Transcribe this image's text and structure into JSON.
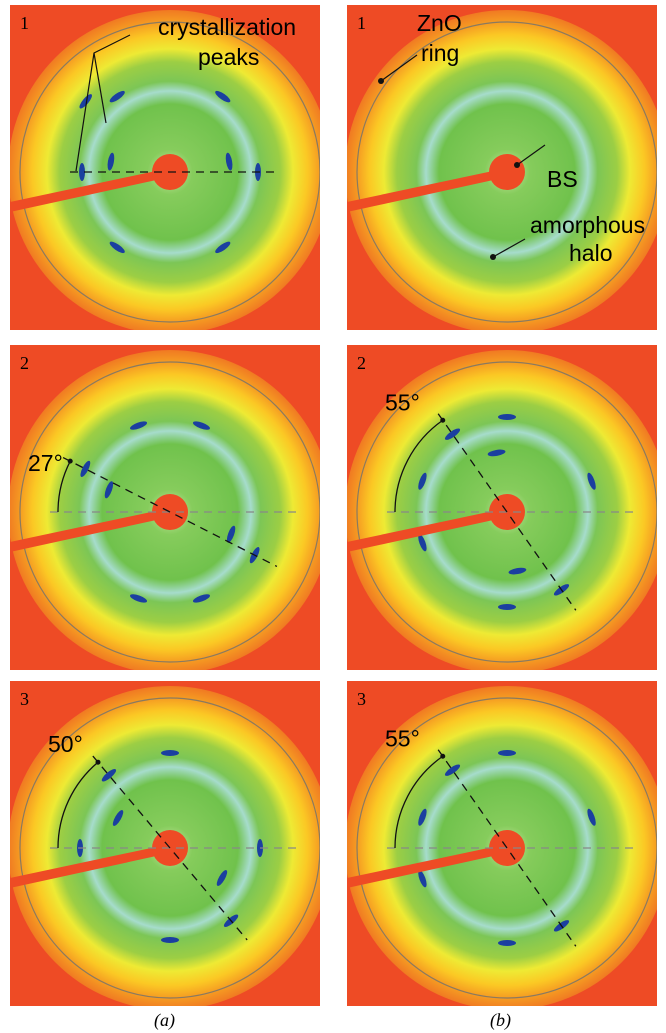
{
  "panels": [
    {
      "label": "1",
      "annotations": [
        "crystallization",
        "peaks"
      ]
    },
    {
      "label": "1",
      "annotations": [
        "ZnO",
        "ring",
        "BS",
        "amorphous",
        "halo"
      ]
    },
    {
      "label": "2",
      "angle_label": "27°"
    },
    {
      "label": "2",
      "angle_label": "55°"
    },
    {
      "label": "3",
      "angle_label": "50°"
    },
    {
      "label": "3",
      "angle_label": "55°"
    }
  ],
  "captions": [
    "(a)",
    "(b)"
  ]
}
